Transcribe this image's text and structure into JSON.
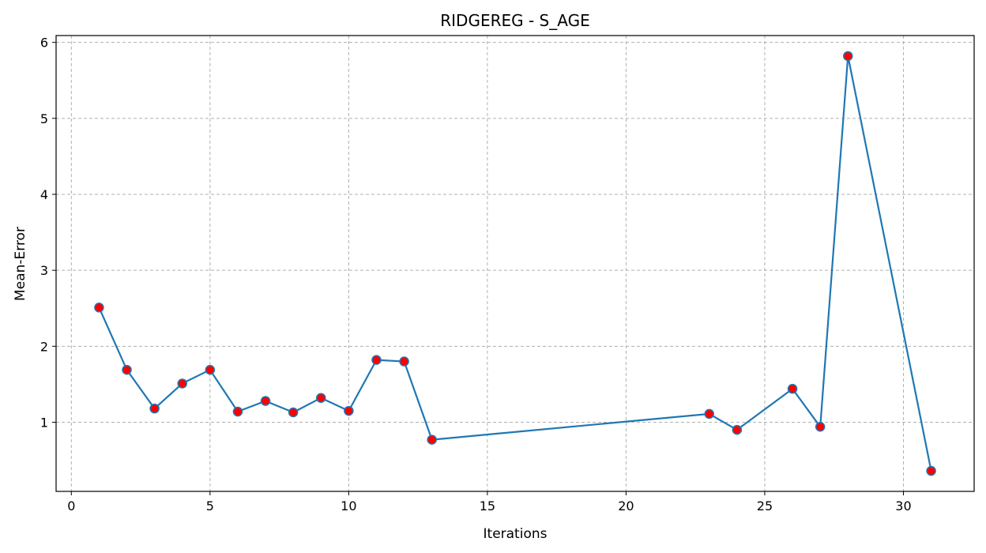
{
  "chart_data": {
    "type": "line",
    "title": "RIDGEREG - S_AGE",
    "xlabel": "Iterations",
    "ylabel": "Mean-Error",
    "xlim": [
      -0.55,
      32.55
    ],
    "ylim": [
      0.09,
      6.09
    ],
    "xticks": [
      0,
      5,
      10,
      15,
      20,
      25,
      30
    ],
    "yticks": [
      1,
      2,
      3,
      4,
      5,
      6
    ],
    "grid": true,
    "series": [
      {
        "x": [
          1,
          2,
          3,
          4,
          5,
          6,
          7,
          8,
          9,
          10,
          11,
          12,
          13,
          23,
          24,
          26,
          27,
          28,
          31
        ],
        "y": [
          2.51,
          1.69,
          1.18,
          1.51,
          1.69,
          1.14,
          1.28,
          1.13,
          1.32,
          1.15,
          1.82,
          1.8,
          0.77,
          1.11,
          0.9,
          1.44,
          0.94,
          5.82,
          0.36
        ],
        "line_color": "#1f77b4",
        "marker_face": "#ff0000",
        "marker_edge": "#1f77b4"
      }
    ]
  }
}
